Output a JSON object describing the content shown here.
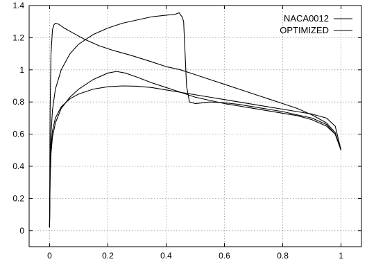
{
  "chart_data": {
    "type": "line",
    "title": "",
    "xlabel": "",
    "ylabel": "",
    "xlim": [
      -0.07,
      1.07
    ],
    "ylim": [
      -0.1,
      1.4
    ],
    "xticks": [
      0,
      0.2,
      0.4,
      0.6,
      0.8,
      1
    ],
    "xtick_labels": [
      "0",
      "0.2",
      "0.4",
      "0.6",
      "0.8",
      "1"
    ],
    "yticks": [
      0,
      0.2,
      0.4,
      0.6,
      0.8,
      1,
      1.2,
      1.4
    ],
    "ytick_labels": [
      "0",
      "0.2",
      "0.4",
      "0.6",
      "0.8",
      "1",
      "1.2",
      "1.4"
    ],
    "grid": true,
    "legend_position": "top-right",
    "series": [
      {
        "name": "NACA0012",
        "curves": [
          {
            "x": [
              0,
              0.002,
              0.005,
              0.01,
              0.015,
              0.02,
              0.03,
              0.05,
              0.08,
              0.12,
              0.17,
              0.22,
              0.28,
              0.35,
              0.4,
              0.45,
              0.5,
              0.55,
              0.6,
              0.65,
              0.7,
              0.75,
              0.8,
              0.85,
              0.9,
              0.95,
              0.98,
              1.0
            ],
            "y": [
              0.02,
              0.75,
              1.1,
              1.25,
              1.28,
              1.29,
              1.285,
              1.26,
              1.23,
              1.19,
              1.15,
              1.12,
              1.09,
              1.05,
              1.02,
              1.0,
              0.97,
              0.94,
              0.91,
              0.88,
              0.85,
              0.82,
              0.79,
              0.76,
              0.72,
              0.67,
              0.61,
              0.5
            ]
          },
          {
            "x": [
              0,
              0.002,
              0.005,
              0.01,
              0.02,
              0.04,
              0.07,
              0.1,
              0.15,
              0.2,
              0.25,
              0.3,
              0.35,
              0.4,
              0.45,
              0.5,
              0.55,
              0.6,
              0.65,
              0.7,
              0.75,
              0.8,
              0.85,
              0.9,
              0.95,
              0.98,
              1.0
            ],
            "y": [
              0.02,
              0.35,
              0.52,
              0.62,
              0.7,
              0.77,
              0.82,
              0.85,
              0.88,
              0.895,
              0.9,
              0.898,
              0.89,
              0.875,
              0.86,
              0.845,
              0.83,
              0.815,
              0.8,
              0.785,
              0.77,
              0.755,
              0.74,
              0.725,
              0.7,
              0.65,
              0.5
            ]
          }
        ]
      },
      {
        "name": "OPTIMIZED",
        "curves": [
          {
            "x": [
              0,
              0.002,
              0.005,
              0.01,
              0.02,
              0.04,
              0.07,
              0.1,
              0.15,
              0.2,
              0.25,
              0.3,
              0.35,
              0.4,
              0.43,
              0.445,
              0.45,
              0.455,
              0.46,
              0.465,
              0.47,
              0.48,
              0.5,
              0.55,
              0.6,
              0.65,
              0.7,
              0.75,
              0.8,
              0.85,
              0.9,
              0.95,
              0.98,
              1.0
            ],
            "y": [
              0.02,
              0.4,
              0.6,
              0.75,
              0.88,
              1.0,
              1.1,
              1.16,
              1.22,
              1.26,
              1.29,
              1.31,
              1.33,
              1.34,
              1.345,
              1.355,
              1.34,
              1.33,
              1.3,
              1.1,
              0.9,
              0.8,
              0.79,
              0.8,
              0.795,
              0.785,
              0.77,
              0.755,
              0.74,
              0.72,
              0.7,
              0.66,
              0.6,
              0.5
            ]
          },
          {
            "x": [
              0,
              0.002,
              0.005,
              0.01,
              0.02,
              0.04,
              0.07,
              0.1,
              0.15,
              0.2,
              0.23,
              0.26,
              0.3,
              0.35,
              0.4,
              0.45,
              0.5,
              0.55,
              0.6,
              0.65,
              0.7,
              0.75,
              0.8,
              0.85,
              0.9,
              0.95,
              0.98,
              1.0
            ],
            "y": [
              0.02,
              0.32,
              0.48,
              0.58,
              0.67,
              0.76,
              0.83,
              0.88,
              0.94,
              0.98,
              0.99,
              0.98,
              0.955,
              0.92,
              0.89,
              0.86,
              0.83,
              0.81,
              0.79,
              0.775,
              0.76,
              0.745,
              0.73,
              0.715,
              0.69,
              0.65,
              0.6,
              0.5
            ]
          }
        ]
      }
    ]
  }
}
